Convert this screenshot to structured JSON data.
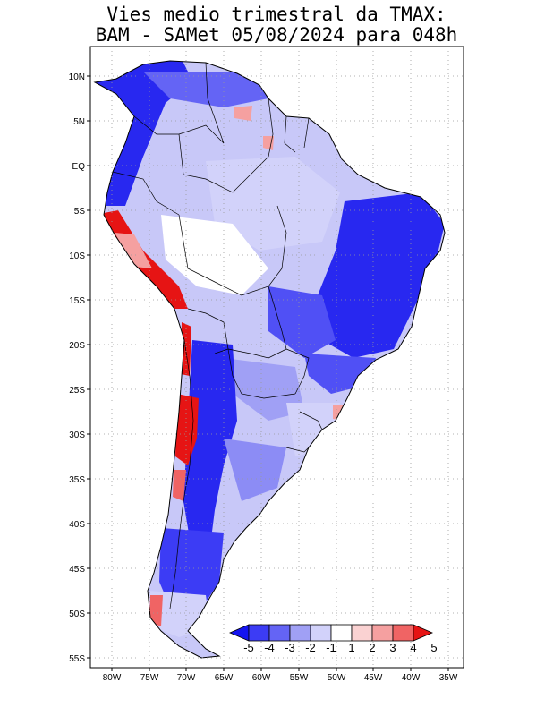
{
  "title": {
    "line1": "Vies medio trimestral da TMAX:",
    "line2": "BAM - SAMet 05/08/2024  para 048h"
  },
  "axes": {
    "lat_labels": [
      "10N",
      "5N",
      "EQ",
      "5S",
      "10S",
      "15S",
      "20S",
      "25S",
      "30S",
      "35S",
      "40S",
      "45S",
      "50S",
      "55S"
    ],
    "lon_labels": [
      "80W",
      "75W",
      "70W",
      "65W",
      "60W",
      "55W",
      "50W",
      "45W",
      "40W",
      "35W"
    ]
  },
  "colorbar": {
    "labels": [
      "-5",
      "-4",
      "-3",
      "-2",
      "-1",
      "1",
      "2",
      "3",
      "4",
      "5"
    ],
    "colors": [
      "#1414f0",
      "#3c3cf5",
      "#6464f5",
      "#a0a0f5",
      "#d2d2fa",
      "#ffffff",
      "#fad2d2",
      "#f5a0a0",
      "#f06464",
      "#e61414"
    ]
  },
  "colors": {
    "strong_neg": "#2828f0",
    "neg": "#5050f5",
    "mid_neg": "#8c8cf5",
    "light_neg": "#c8c8f8",
    "neutral": "#ffffff",
    "pos": "#e61414",
    "border": "#000000",
    "grid": "#999999"
  }
}
